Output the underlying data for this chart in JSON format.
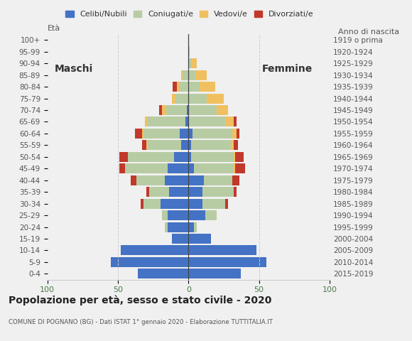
{
  "age_groups": [
    "0-4",
    "5-9",
    "10-14",
    "15-19",
    "20-24",
    "25-29",
    "30-34",
    "35-39",
    "40-44",
    "45-49",
    "50-54",
    "55-59",
    "60-64",
    "65-69",
    "70-74",
    "75-79",
    "80-84",
    "85-89",
    "90-94",
    "95-99",
    "100+"
  ],
  "birth_years": [
    "2015-2019",
    "2010-2014",
    "2005-2009",
    "2000-2004",
    "1995-1999",
    "1990-1994",
    "1985-1989",
    "1980-1984",
    "1975-1979",
    "1970-1974",
    "1965-1969",
    "1960-1964",
    "1955-1959",
    "1950-1954",
    "1945-1949",
    "1940-1944",
    "1935-1939",
    "1930-1934",
    "1925-1929",
    "1920-1924",
    "1919 o prima"
  ],
  "male": {
    "celibi": [
      36,
      55,
      48,
      12,
      15,
      15,
      20,
      14,
      17,
      15,
      10,
      5,
      6,
      2,
      1,
      0,
      0,
      0,
      0,
      0,
      0
    ],
    "coniugati": [
      0,
      0,
      0,
      0,
      2,
      4,
      12,
      14,
      20,
      30,
      33,
      24,
      26,
      27,
      15,
      9,
      6,
      4,
      0,
      0,
      0
    ],
    "vedovi": [
      0,
      0,
      0,
      0,
      0,
      0,
      0,
      0,
      0,
      0,
      0,
      1,
      1,
      2,
      3,
      3,
      2,
      1,
      0,
      0,
      0
    ],
    "divorziati": [
      0,
      0,
      0,
      0,
      0,
      0,
      2,
      2,
      4,
      4,
      6,
      3,
      5,
      0,
      2,
      0,
      3,
      0,
      0,
      0,
      0
    ]
  },
  "female": {
    "nubili": [
      37,
      55,
      48,
      16,
      4,
      12,
      10,
      10,
      11,
      4,
      2,
      2,
      3,
      0,
      0,
      0,
      0,
      0,
      0,
      0,
      0
    ],
    "coniugate": [
      0,
      0,
      0,
      0,
      2,
      8,
      16,
      22,
      20,
      28,
      30,
      28,
      28,
      26,
      20,
      13,
      8,
      5,
      2,
      0,
      0
    ],
    "vedove": [
      0,
      0,
      0,
      0,
      0,
      0,
      0,
      0,
      0,
      1,
      1,
      2,
      3,
      6,
      8,
      12,
      11,
      8,
      4,
      1,
      0
    ],
    "divorziate": [
      0,
      0,
      0,
      0,
      0,
      0,
      2,
      2,
      5,
      7,
      6,
      3,
      2,
      2,
      0,
      0,
      0,
      0,
      0,
      0,
      0
    ]
  },
  "colors": {
    "celibi": "#4472c4",
    "coniugati": "#b8cca4",
    "vedovi": "#f0c060",
    "divorziati": "#c0392b"
  },
  "title": "Popolazione per età, sesso e stato civile - 2020",
  "subtitle": "COMUNE DI POGNANO (BG) - Dati ISTAT 1° gennaio 2020 - Elaborazione TUTTITALIA.IT",
  "xlabel_left": "Età",
  "xlabel_right": "Anno di nascita",
  "label_maschi": "Maschi",
  "label_femmine": "Femmine",
  "legend_labels": [
    "Celibi/Nubili",
    "Coniugati/e",
    "Vedovi/e",
    "Divorziati/e"
  ],
  "xlim": 100,
  "background_color": "#f0f0f0",
  "grid_color": "#cccccc"
}
